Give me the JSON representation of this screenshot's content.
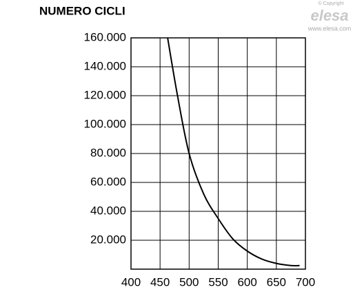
{
  "chart_data": {
    "type": "line",
    "title": "NUMERO CICLI",
    "annotations": [
      "© Copyright",
      "elesa",
      "www.elesa.com"
    ],
    "x": [
      463,
      480,
      500,
      525,
      550,
      575,
      600,
      625,
      650,
      675,
      690
    ],
    "values": [
      160000,
      120000,
      80000,
      52000,
      35000,
      21000,
      12500,
      7000,
      4000,
      2500,
      2500
    ],
    "color": "#000000",
    "xlim": [
      400,
      700
    ],
    "xticks": [
      400,
      450,
      500,
      550,
      600,
      650,
      700
    ],
    "ylim": [
      0,
      160000
    ],
    "yticks": [
      {
        "value": 20000,
        "label": "20.000"
      },
      {
        "value": 40000,
        "label": "40.000"
      },
      {
        "value": 60000,
        "label": "60.000"
      },
      {
        "value": 80000,
        "label": "80.000"
      },
      {
        "value": 100000,
        "label": "100.000"
      },
      {
        "value": 120000,
        "label": "120.000"
      },
      {
        "value": 140000,
        "label": "140.000"
      },
      {
        "value": 160000,
        "label": "160.000"
      }
    ],
    "grid": true
  }
}
